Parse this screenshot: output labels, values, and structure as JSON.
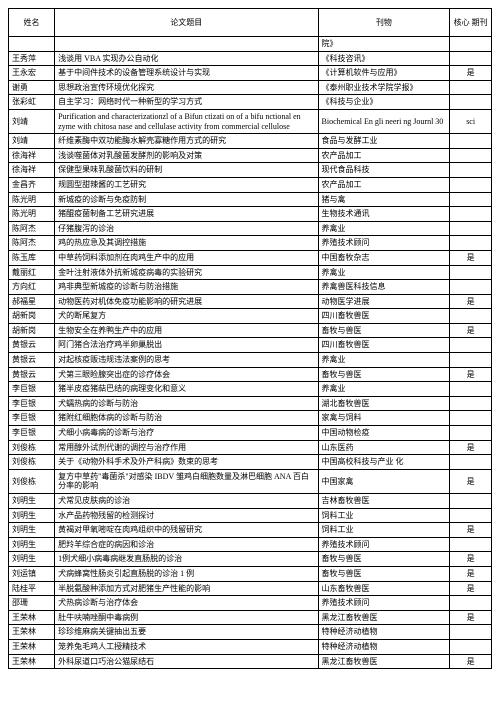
{
  "headers": {
    "name": "姓名",
    "title": "论文题目",
    "journal": "刊物",
    "core": "核心 期刊"
  },
  "rows": [
    {
      "name": "",
      "title": "",
      "journal": "院》",
      "core": ""
    },
    {
      "name": "王秀萍",
      "title": "浅谈用 VBA 实现办公自动化",
      "journal": "《科技咨讯》",
      "core": ""
    },
    {
      "name": "王永宏",
      "title": "基于中间件技术的设备管理系统设计与实现",
      "journal": "《计算机软件与应用》",
      "core": "是"
    },
    {
      "name": "谢勇",
      "title": "思想政治宣传环境优化探究",
      "journal": "《泰州职业技术学院学报》",
      "core": ""
    },
    {
      "name": "张彩虹",
      "title": "自主学习：网络时代一种新型的学习方式",
      "journal": "《科技与企业》",
      "core": ""
    },
    {
      "name": "刘靖",
      "title": "Purification and characterizationzl of a Bifun ctizati on of a bifu nctional en zyme with chitosa nase and cellulase activity from commercial cellulose",
      "journal": "Biochemical En gli neeri ng Journl 30",
      "core": "sci"
    },
    {
      "name": "刘靖",
      "title": "纤维素酶中双功能酶水解壳寡糖作用方式的研究",
      "journal": "食品与发酵工业",
      "core": ""
    },
    {
      "name": "徐海祥",
      "title": "浅谈噬菌体对乳酸菌发酵剂的影响及对策",
      "journal": "农产品加工",
      "core": ""
    },
    {
      "name": "徐海祥",
      "title": "保健型果味乳酸菌饮料的研制",
      "journal": "现代食品科技",
      "core": ""
    },
    {
      "name": "金昌齐",
      "title": "规圆型甜辣酱的工艺研究",
      "journal": "农产品加工",
      "core": ""
    },
    {
      "name": "陈光明",
      "title": "新城疫的诊断与免疫防制",
      "journal": "猪与禽",
      "core": ""
    },
    {
      "name": "陈光明",
      "title": "猪醌疫菌制备工艺研究进展",
      "journal": "生物技术通讯",
      "core": ""
    },
    {
      "name": "陈阿杰",
      "title": "仔猪腹泻的诊治",
      "journal": "养禽业",
      "core": ""
    },
    {
      "name": "陈阿杰",
      "title": "鸡的热应急及其调控措施",
      "journal": "养殖技术顾问",
      "core": ""
    },
    {
      "name": "陈玉库",
      "title": "中草药饲料添加剂在肉鸡生产中的应用",
      "journal": "中国畜牧杂志",
      "core": "是"
    },
    {
      "name": "戴丽红",
      "title": "金叶注射液体外抗新城疫病毒的实验研究",
      "journal": "养禽业",
      "core": ""
    },
    {
      "name": "方向红",
      "title": "鸡非典型新城疫的诊断与防治措施",
      "journal": "养禽兽医科技信息",
      "core": ""
    },
    {
      "name": "郝福星",
      "title": "动物医药对机体免疫功能影响的研究进展",
      "journal": "动物医学进展",
      "core": "是"
    },
    {
      "name": "胡新岗",
      "title": "犬的断尾复方",
      "journal": "四川畜牧兽医",
      "core": ""
    },
    {
      "name": "胡新岗",
      "title": "生物安全在养鸭生产中的应用",
      "journal": "畜牧与兽医",
      "core": "是"
    },
    {
      "name": "黄银云",
      "title": "阿门猪合法治疗鸡半卵巢脱出",
      "journal": "四川畜牧兽医",
      "core": ""
    },
    {
      "name": "黄银云",
      "title": "对起核疫贩违规违法案例的思考",
      "journal": "养禽业",
      "core": ""
    },
    {
      "name": "黄银云",
      "title": "犬第三眼睑腺突出症的诊疗体会",
      "journal": "畜牧与兽医",
      "core": "是"
    },
    {
      "name": "李巨银",
      "title": "猪半皮疫猪萜巴结的病理变化和意义",
      "journal": "养禽业",
      "core": ""
    },
    {
      "name": "李巨银",
      "title": "犬蠕热病的诊断与防治",
      "journal": "湖北畜牧兽医",
      "core": ""
    },
    {
      "name": "李巨银",
      "title": "猪附红细胞体病的诊断与防治",
      "journal": "家禽与饲料",
      "core": ""
    },
    {
      "name": "李巨银",
      "title": "犬细小病毒病的诊断与治疗",
      "journal": "中国动物检疫",
      "core": ""
    },
    {
      "name": "刘俊栋",
      "title": "常用醇外试剂代谢的调控与治疗作用",
      "journal": "山东医药",
      "core": "是"
    },
    {
      "name": "刘俊栋",
      "title": "关于《动物外科手术及外产科病》数束的思考",
      "journal": "中国高校科技与产业 化",
      "core": ""
    },
    {
      "name": "刘俊栋",
      "title": "复方中草药\"毒菌杀\"对感染   IBDV 雏鸡白细胞数量及淋巴细胞 ANA 百白分率的影响",
      "journal": "中国家禽",
      "core": "是"
    },
    {
      "name": "刘明生",
      "title": "犬常见皮肤病的诊治",
      "journal": "吉林畜牧兽医",
      "core": ""
    },
    {
      "name": "刘明生",
      "title": "水产品药物残留的检测探讨",
      "journal": "饲料工业",
      "core": ""
    },
    {
      "name": "刘明生",
      "title": "黄褐对甲氧嘧啶在肉鸡组织中的残留研究",
      "journal": "饲料工业",
      "core": "是"
    },
    {
      "name": "刘明生",
      "title": "肥羚羊综合症的病因和诊治",
      "journal": "养殖技术顾问",
      "core": ""
    },
    {
      "name": "刘明生",
      "title": "1例犬细小病毒病继发直肠脱的诊治",
      "journal": "畜牧与兽医",
      "core": "是"
    },
    {
      "name": "刘运镇",
      "title": "犬病蜂窝性肠炎引起直肠脱的诊治     1 例",
      "journal": "畜牧与兽医",
      "core": "是"
    },
    {
      "name": "陆桂平",
      "title": "半脱氨酸种添加方式对肥猪生产性能的影响",
      "journal": "山东畜牧兽医",
      "core": "是"
    },
    {
      "name": "邵珊",
      "title": "犬热病诊断与治疗体会",
      "journal": "养殖技术顾问",
      "core": ""
    },
    {
      "name": "王荣林",
      "title": "肚牛呋喃唑酮中毒病例",
      "journal": "黑龙江畜牧兽医",
      "core": "是"
    },
    {
      "name": "王荣林",
      "title": "珍珍维麻病关键抽出五要",
      "journal": "特种经济动植物",
      "core": ""
    },
    {
      "name": "王荣林",
      "title": "笼养兔毛鸡人工授精技术",
      "journal": "特种经济动植物",
      "core": ""
    },
    {
      "name": "王荣林",
      "title": "外科尿道口巧治公猫尿结石",
      "journal": "黑龙江畜牧兽医",
      "core": "是"
    }
  ]
}
